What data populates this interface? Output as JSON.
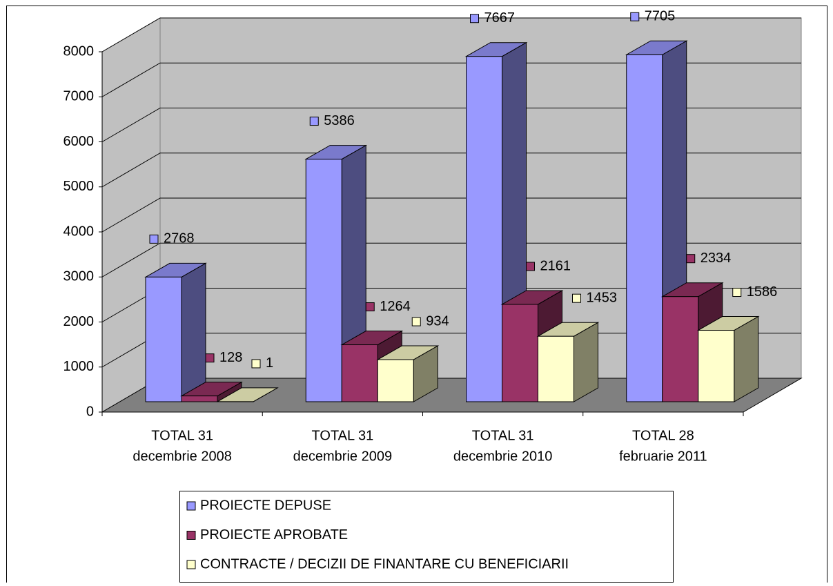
{
  "chart_data": {
    "type": "bar3d",
    "categories": [
      [
        "TOTAL 31",
        "decembrie 2008"
      ],
      [
        "TOTAL 31",
        "decembrie 2009"
      ],
      [
        "TOTAL 31",
        "decembrie 2010"
      ],
      [
        "TOTAL 28",
        "februarie 2011"
      ]
    ],
    "series": [
      {
        "name": "PROIECTE DEPUSE",
        "color": "#9999ff",
        "values": [
          2768,
          5386,
          7667,
          7705
        ]
      },
      {
        "name": "PROIECTE APROBATE",
        "color": "#993366",
        "values": [
          128,
          1264,
          2161,
          2334
        ]
      },
      {
        "name": "CONTRACTE / DECIZII DE FINANTARE CU BENEFICIARII",
        "color": "#ffffcc",
        "values": [
          1,
          934,
          1453,
          1586
        ]
      }
    ],
    "ylim": [
      0,
      8000
    ],
    "yticks": [
      0,
      1000,
      2000,
      3000,
      4000,
      5000,
      6000,
      7000,
      8000
    ],
    "grid": true
  }
}
